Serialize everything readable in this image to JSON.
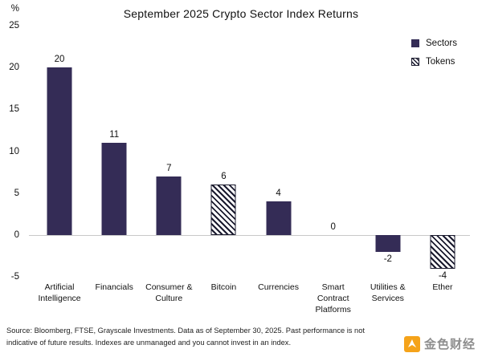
{
  "chart_data": {
    "type": "bar",
    "title": "September 2025 Crypto Sector Index Returns",
    "y_unit": "%",
    "ylim": [
      -5,
      25
    ],
    "yticks": [
      25,
      20,
      15,
      10,
      5,
      0,
      -5
    ],
    "grid": false,
    "categories": [
      "Artificial Intelligence",
      "Financials",
      "Consumer & Culture",
      "Bitcoin",
      "Currencies",
      "Smart Contract Platforms",
      "Utilities & Services",
      "Ether"
    ],
    "values": [
      20,
      11,
      7,
      6,
      4,
      0,
      -2,
      -4
    ],
    "bar_styles": [
      "sector",
      "sector",
      "sector",
      "token",
      "sector",
      "sector",
      "sector",
      "token"
    ],
    "legend": [
      {
        "label": "Sectors",
        "style": "sector"
      },
      {
        "label": "Tokens",
        "style": "token"
      }
    ],
    "legend_position": "top-right",
    "colors": {
      "sector_fill": "#342C56",
      "token_stripe": "#1A1A2E",
      "axis_line": "#C8C8C8"
    }
  },
  "footer": {
    "line1": "Source: Bloomberg, FTSE, Grayscale Investments. Data as of September 30, 2025. Past performance is not",
    "line2": "indicative of future results. Indexes are unmanaged and you cannot invest in an index."
  },
  "watermark": {
    "text": "金色财经",
    "logo_color": "#F5A31A"
  }
}
